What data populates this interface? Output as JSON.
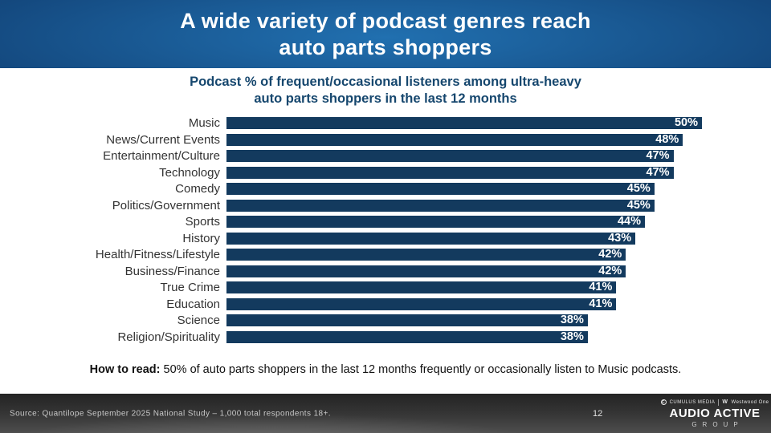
{
  "header": {
    "title_line1": "A wide variety of podcast genres reach",
    "title_line2": "auto parts shoppers"
  },
  "subtitle": {
    "line1": "Podcast % of frequent/occasional listeners among ultra-heavy",
    "line2": "auto parts shoppers in the last 12 months"
  },
  "chart_data": {
    "type": "bar",
    "orientation": "horizontal",
    "categories": [
      "Music",
      "News/Current Events",
      "Entertainment/Culture",
      "Technology",
      "Comedy",
      "Politics/Government",
      "Sports",
      "History",
      "Health/Fitness/Lifestyle",
      "Business/Finance",
      "True Crime",
      "Education",
      "Science",
      "Religion/Spirituality"
    ],
    "values": [
      50,
      48,
      47,
      47,
      45,
      45,
      44,
      43,
      42,
      42,
      41,
      41,
      38,
      38
    ],
    "value_suffix": "%",
    "xlim": [
      0,
      50
    ],
    "grid": false,
    "legend": false,
    "value_labels_position": "inside-end"
  },
  "colors": {
    "header-center": "#2170b0",
    "header-mid": "#14497f",
    "header-edge": "#0a1d48",
    "subtitle-color": "#16476e",
    "bar-color": "#133a5e",
    "value-color": "#ffffff"
  },
  "how_to_read": {
    "label": "How to read:",
    "text": " 50% of auto parts shoppers in the last 12 months frequently or occasionally listen to Music podcasts."
  },
  "footer": {
    "source": "Source: Quantilope September 2025 National Study – 1,000 total respondents 18+.",
    "page_number": "12",
    "logo": {
      "brand_top_left": "CUMULUS MEDIA",
      "brand_top_right": "Westwood One",
      "brand_main": "AUDIO ACTIVE",
      "brand_sub": "GROUP"
    }
  }
}
